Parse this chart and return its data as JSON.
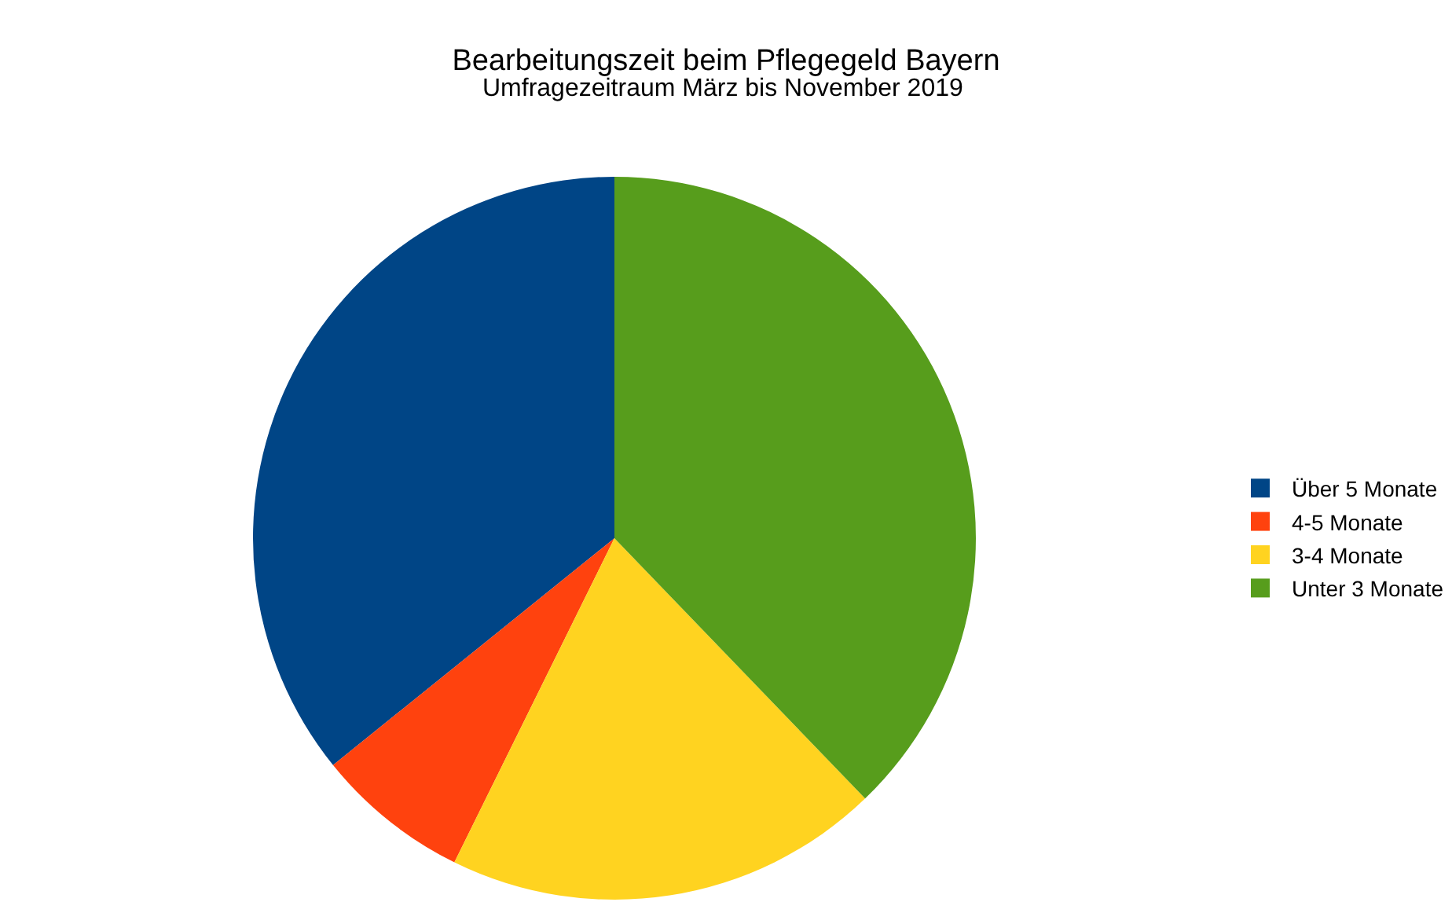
{
  "chart_data": {
    "type": "pie",
    "title": "Bearbeitungszeit beim Pflegegeld Bayern",
    "subtitle": "Umfragezeitraum März bis November 2019",
    "categories": [
      "Über 5 Monate",
      "4-5 Monate",
      "3-4 Monate",
      "Unter 3 Monate"
    ],
    "values": [
      35.8,
      6.9,
      19.5,
      37.8
    ],
    "colors": [
      "#004586",
      "#ff420e",
      "#ffd320",
      "#579d1c"
    ],
    "legend": "right"
  }
}
